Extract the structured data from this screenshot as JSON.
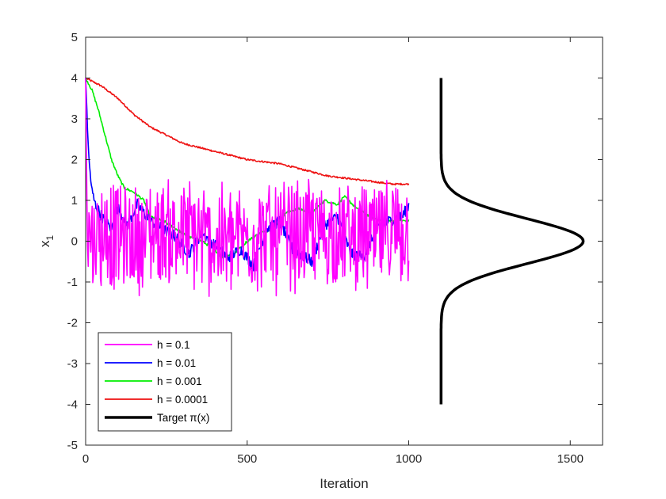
{
  "chart_data": {
    "type": "line",
    "title": "",
    "xlabel": "Iteration",
    "ylabel_main": "x",
    "ylabel_sub": "1",
    "xlim": [
      0,
      1600
    ],
    "ylim": [
      -5,
      5
    ],
    "x_ticks": [
      0,
      500,
      1000,
      1500
    ],
    "y_ticks": [
      5,
      4,
      3,
      2,
      1,
      0,
      -1,
      -2,
      -3,
      -4,
      -5
    ],
    "grid": false,
    "legend_position": "bottom-left",
    "series": [
      {
        "name": "h = 0.1",
        "color": "#ff00ff",
        "style": "noisy",
        "x": [
          0,
          5,
          10,
          25,
          50,
          100,
          150,
          200,
          300,
          400,
          500,
          600,
          700,
          800,
          900,
          1000
        ],
        "y": [
          4.0,
          0.3,
          0.2,
          0.1,
          0.2,
          0.1,
          0.0,
          0.2,
          0.2,
          0.0,
          0.1,
          0.1,
          0.2,
          0.1,
          0.1,
          0.2
        ]
      },
      {
        "name": "h = 0.01",
        "color": "#0000ff",
        "style": "walk",
        "x": [
          0,
          10,
          20,
          30,
          50,
          80,
          100,
          130,
          160,
          200,
          240,
          280,
          320,
          360,
          400,
          440,
          480,
          520,
          560,
          600,
          640,
          700,
          740,
          780,
          820,
          860,
          900,
          940,
          980,
          1000
        ],
        "y": [
          4.0,
          2.0,
          1.2,
          0.9,
          0.6,
          0.3,
          0.8,
          0.4,
          0.9,
          0.5,
          0.3,
          0.1,
          -0.3,
          0.2,
          -0.1,
          -0.4,
          -0.2,
          -0.6,
          0.3,
          0.5,
          -0.2,
          -0.5,
          0.4,
          0.6,
          -0.3,
          -0.4,
          0.3,
          0.5,
          0.6,
          0.9
        ]
      },
      {
        "name": "h = 0.001",
        "color": "#00ee00",
        "style": "walk",
        "x": [
          0,
          20,
          40,
          60,
          80,
          100,
          120,
          150,
          180,
          200,
          240,
          280,
          320,
          360,
          400,
          420,
          460,
          500,
          540,
          580,
          620,
          660,
          700,
          740,
          780,
          800,
          840,
          880,
          920,
          960,
          1000
        ],
        "y": [
          4.0,
          3.7,
          3.2,
          2.6,
          2.0,
          1.6,
          1.3,
          1.2,
          1.0,
          0.6,
          0.5,
          0.3,
          0.1,
          0.0,
          -0.2,
          -0.4,
          -0.3,
          0.0,
          0.2,
          0.3,
          0.7,
          0.8,
          0.7,
          1.0,
          0.9,
          1.1,
          0.8,
          0.6,
          0.5,
          0.5,
          0.5
        ]
      },
      {
        "name": "h = 0.0001",
        "color": "#ee1111",
        "style": "walk",
        "x": [
          0,
          50,
          100,
          150,
          200,
          250,
          300,
          350,
          400,
          450,
          500,
          550,
          600,
          650,
          700,
          750,
          800,
          850,
          900,
          950,
          1000
        ],
        "y": [
          4.0,
          3.8,
          3.5,
          3.1,
          2.8,
          2.6,
          2.4,
          2.3,
          2.2,
          2.1,
          2.0,
          1.95,
          1.9,
          1.8,
          1.7,
          1.6,
          1.55,
          1.5,
          1.45,
          1.4,
          1.4
        ]
      },
      {
        "name": "Target π(x)",
        "color": "#000000",
        "style": "density",
        "baseline": 1100,
        "peak": 1540,
        "mean": 0,
        "sd": 0.55,
        "range": [
          -4,
          4
        ]
      }
    ]
  }
}
